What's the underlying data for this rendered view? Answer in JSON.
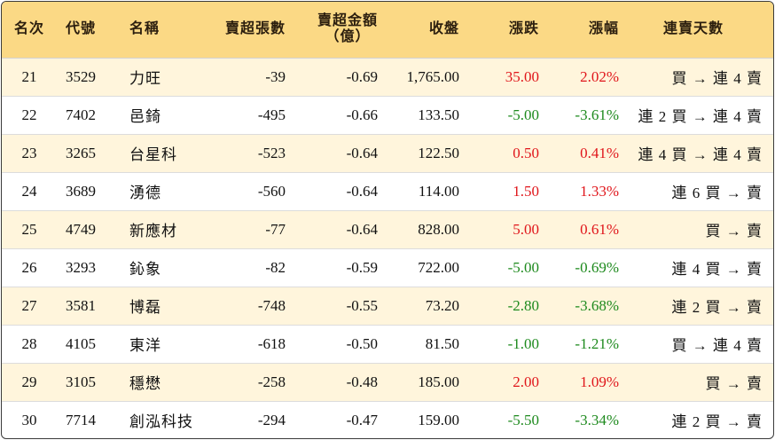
{
  "colors": {
    "header_bg": "#fbd985",
    "alt_row_bg": "#fff5dc",
    "up": "#e0161b",
    "down": "#1e8a1e"
  },
  "headers": {
    "rank": "名次",
    "code": "代號",
    "name": "名稱",
    "net_sell_lots": "賣超張數",
    "net_sell_amount_line1": "賣超金額",
    "net_sell_amount_line2": "（億）",
    "close": "收盤",
    "change": "漲跌",
    "change_pct": "漲幅",
    "streak": "連賣天數"
  },
  "rows": [
    {
      "rank": "21",
      "code": "3529",
      "name": "力旺",
      "lots": "-39",
      "amount": "-0.69",
      "close": "1,765.00",
      "change": "35.00",
      "pct": "2.02%",
      "dir": "up",
      "streak": "買 → 連 4 賣"
    },
    {
      "rank": "22",
      "code": "7402",
      "name": "邑錡",
      "lots": "-495",
      "amount": "-0.66",
      "close": "133.50",
      "change": "-5.00",
      "pct": "-3.61%",
      "dir": "down",
      "streak": "連 2 買 → 連 4 賣"
    },
    {
      "rank": "23",
      "code": "3265",
      "name": "台星科",
      "lots": "-523",
      "amount": "-0.64",
      "close": "122.50",
      "change": "0.50",
      "pct": "0.41%",
      "dir": "up",
      "streak": "連 4 買 → 連 4 賣"
    },
    {
      "rank": "24",
      "code": "3689",
      "name": "湧德",
      "lots": "-560",
      "amount": "-0.64",
      "close": "114.00",
      "change": "1.50",
      "pct": "1.33%",
      "dir": "up",
      "streak": "連 6 買 → 賣"
    },
    {
      "rank": "25",
      "code": "4749",
      "name": "新應材",
      "lots": "-77",
      "amount": "-0.64",
      "close": "828.00",
      "change": "5.00",
      "pct": "0.61%",
      "dir": "up",
      "streak": "買 → 賣"
    },
    {
      "rank": "26",
      "code": "3293",
      "name": "鈊象",
      "lots": "-82",
      "amount": "-0.59",
      "close": "722.00",
      "change": "-5.00",
      "pct": "-0.69%",
      "dir": "down",
      "streak": "連 4 買 → 賣"
    },
    {
      "rank": "27",
      "code": "3581",
      "name": "博磊",
      "lots": "-748",
      "amount": "-0.55",
      "close": "73.20",
      "change": "-2.80",
      "pct": "-3.68%",
      "dir": "down",
      "streak": "連 2 買 → 賣"
    },
    {
      "rank": "28",
      "code": "4105",
      "name": "東洋",
      "lots": "-618",
      "amount": "-0.50",
      "close": "81.50",
      "change": "-1.00",
      "pct": "-1.21%",
      "dir": "down",
      "streak": "買 → 連 4 賣"
    },
    {
      "rank": "29",
      "code": "3105",
      "name": "穩懋",
      "lots": "-258",
      "amount": "-0.48",
      "close": "185.00",
      "change": "2.00",
      "pct": "1.09%",
      "dir": "up",
      "streak": "買 → 賣"
    },
    {
      "rank": "30",
      "code": "7714",
      "name": "創泓科技",
      "lots": "-294",
      "amount": "-0.47",
      "close": "159.00",
      "change": "-5.50",
      "pct": "-3.34%",
      "dir": "down",
      "streak": "連 2 買 → 賣"
    }
  ]
}
